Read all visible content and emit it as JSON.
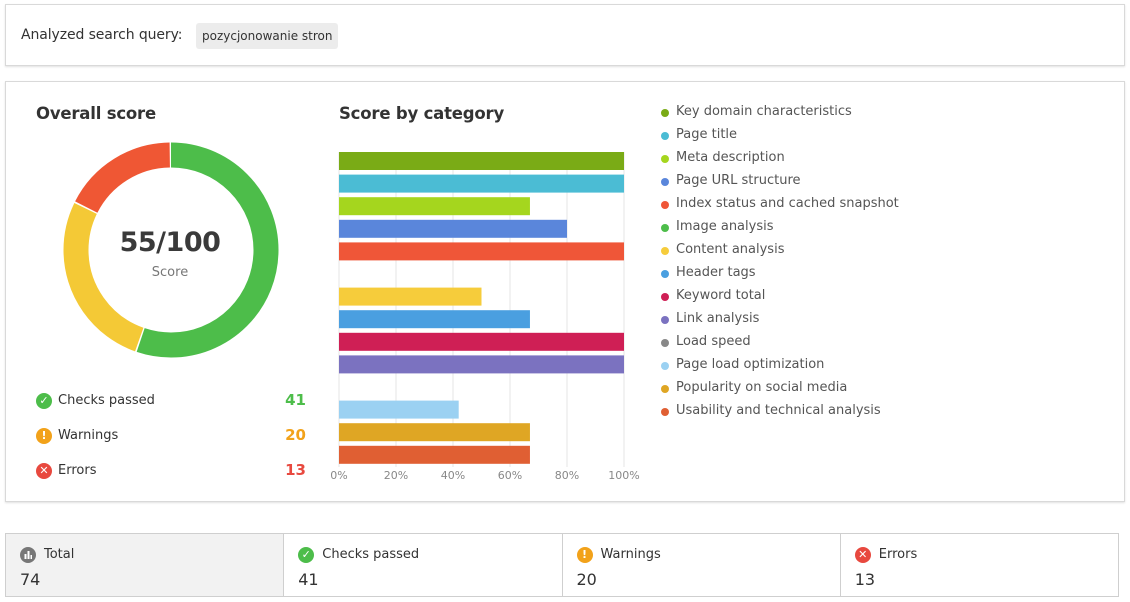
{
  "query": {
    "label": "Analyzed search query:",
    "value": "pozycjonowanie stron"
  },
  "overall": {
    "title": "Overall score",
    "score_text": "55/100",
    "score_caption": "Score",
    "score": 55,
    "max": 100,
    "donut_segments": [
      {
        "name": "Checks passed",
        "value": 41,
        "color": "#4dbd4a"
      },
      {
        "name": "Warnings",
        "value": 20,
        "color": "#f4c936"
      },
      {
        "name": "Errors",
        "value": 13,
        "color": "#ef5734"
      }
    ]
  },
  "stats": [
    {
      "label": "Checks passed",
      "count": "41",
      "color": "#4dbd4a",
      "icon": "check-icon",
      "glyph": "✓"
    },
    {
      "label": "Warnings",
      "count": "20",
      "color": "#f2a21a",
      "icon": "warning-icon",
      "glyph": "!"
    },
    {
      "label": "Errors",
      "count": "13",
      "color": "#e8493f",
      "icon": "error-icon",
      "glyph": "✕"
    }
  ],
  "category": {
    "title": "Score by category"
  },
  "chart_data": {
    "type": "bar",
    "orientation": "horizontal",
    "title": "Score by category",
    "xlim": [
      0,
      100
    ],
    "x_ticks": [
      "0%",
      "20%",
      "40%",
      "60%",
      "80%",
      "100%"
    ],
    "grid": true,
    "legend_position": "right",
    "categories": [
      "Key domain characteristics",
      "Page title",
      "Meta description",
      "Page URL structure",
      "Index status and cached snapshot",
      "Image analysis",
      "Content analysis",
      "Header tags",
      "Keyword total",
      "Link analysis",
      "Load speed",
      "Page load optimization",
      "Popularity on social media",
      "Usability and technical analysis"
    ],
    "values": [
      100,
      100,
      67,
      80,
      100,
      0,
      50,
      67,
      100,
      100,
      0,
      42,
      67,
      67
    ],
    "colors": [
      "#7aab16",
      "#4bbcd4",
      "#a5d61e",
      "#5a86db",
      "#ef5638",
      "#4dbd4a",
      "#f6cc3b",
      "#4a9fe0",
      "#cf1f55",
      "#7b72c0",
      "#888888",
      "#9bd1f2",
      "#dfa624",
      "#e05f33"
    ]
  },
  "summary": [
    {
      "label": "Total",
      "value": "74",
      "color": "#777777",
      "icon": "bar-chart-icon",
      "glyph": "▐",
      "active": true
    },
    {
      "label": "Checks passed",
      "value": "41",
      "color": "#4dbd4a",
      "icon": "check-icon",
      "glyph": "✓",
      "active": false
    },
    {
      "label": "Warnings",
      "value": "20",
      "color": "#f2a21a",
      "icon": "warning-icon",
      "glyph": "!",
      "active": false
    },
    {
      "label": "Errors",
      "value": "13",
      "color": "#e8493f",
      "icon": "error-icon",
      "glyph": "✕",
      "active": false
    }
  ]
}
